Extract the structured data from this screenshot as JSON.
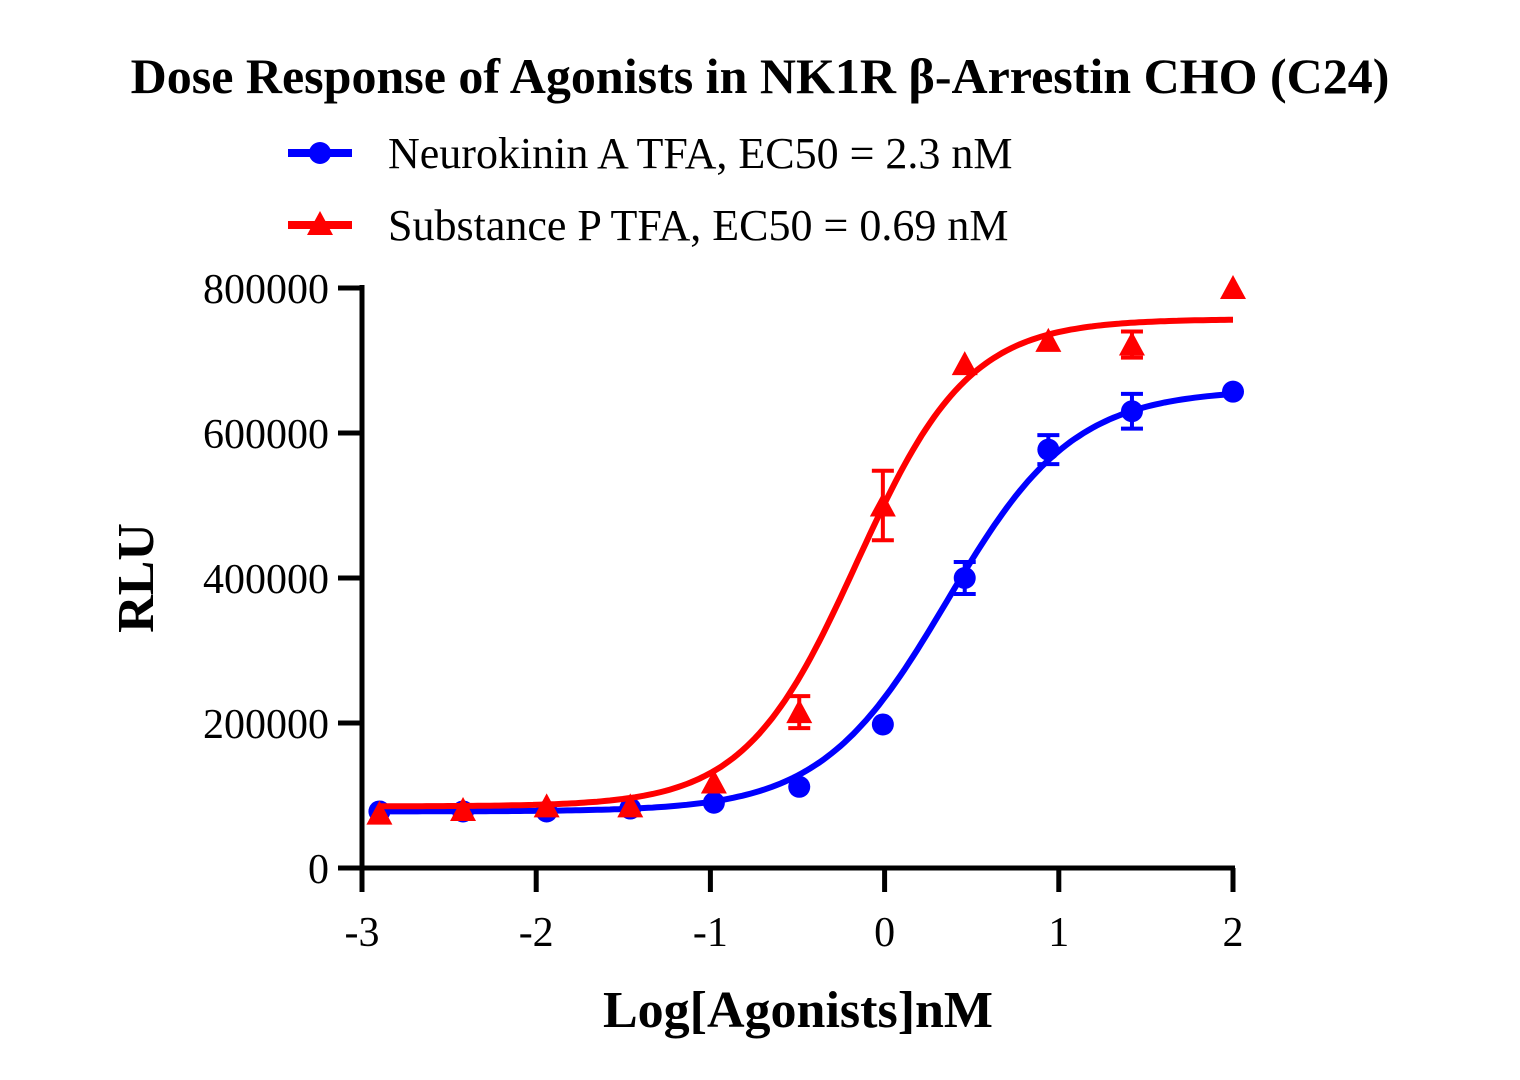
{
  "chart_data": {
    "type": "scatter",
    "title": "Dose Response of Agonists in NK1R β-Arrestin CHO (C24)",
    "xlabel": "Log[Agonists]nM",
    "ylabel": "RLU",
    "xlim": [
      -3,
      2
    ],
    "ylim": [
      0,
      800000
    ],
    "xticks": [
      -3,
      -2,
      -1,
      0,
      1,
      2
    ],
    "yticks": [
      0,
      200000,
      400000,
      600000,
      800000
    ],
    "xtick_labels": [
      "-3",
      "-2",
      "-1",
      "0",
      "1",
      "2"
    ],
    "ytick_labels": [
      "0",
      "200000",
      "400000",
      "600000",
      "800000"
    ],
    "grid": false,
    "legend_position": "top",
    "series": [
      {
        "name": "Neurokinin A TFA, EC50 = 2.3 nM",
        "color": "#0000ff",
        "marker": "circle",
        "fit": {
          "bottom": 78000,
          "top": 660000,
          "log_ec50": 0.36,
          "hill": 1.2
        },
        "x": [
          -2.9,
          -2.42,
          -1.94,
          -1.46,
          -0.98,
          -0.49,
          -0.01,
          0.46,
          0.94,
          1.42,
          2.0
        ],
        "y": [
          78000,
          78000,
          78000,
          82000,
          90000,
          112000,
          198000,
          400000,
          577000,
          630000,
          657000
        ],
        "error": [
          0,
          0,
          0,
          0,
          0,
          0,
          0,
          22000,
          20000,
          24000,
          0
        ]
      },
      {
        "name": "Substance P TFA, EC50 = 0.69 nM",
        "color": "#ff0000",
        "marker": "triangle",
        "fit": {
          "bottom": 85000,
          "top": 757000,
          "log_ec50": -0.16,
          "hill": 1.35
        },
        "x": [
          -2.9,
          -2.42,
          -1.94,
          -1.46,
          -0.98,
          -0.49,
          -0.01,
          0.46,
          0.94,
          1.42,
          2.0
        ],
        "y": [
          75000,
          80000,
          85000,
          85000,
          118000,
          215000,
          500000,
          695000,
          727000,
          722000,
          800000
        ],
        "error": [
          0,
          0,
          0,
          0,
          0,
          22000,
          48000,
          0,
          0,
          18000,
          0
        ]
      }
    ]
  }
}
